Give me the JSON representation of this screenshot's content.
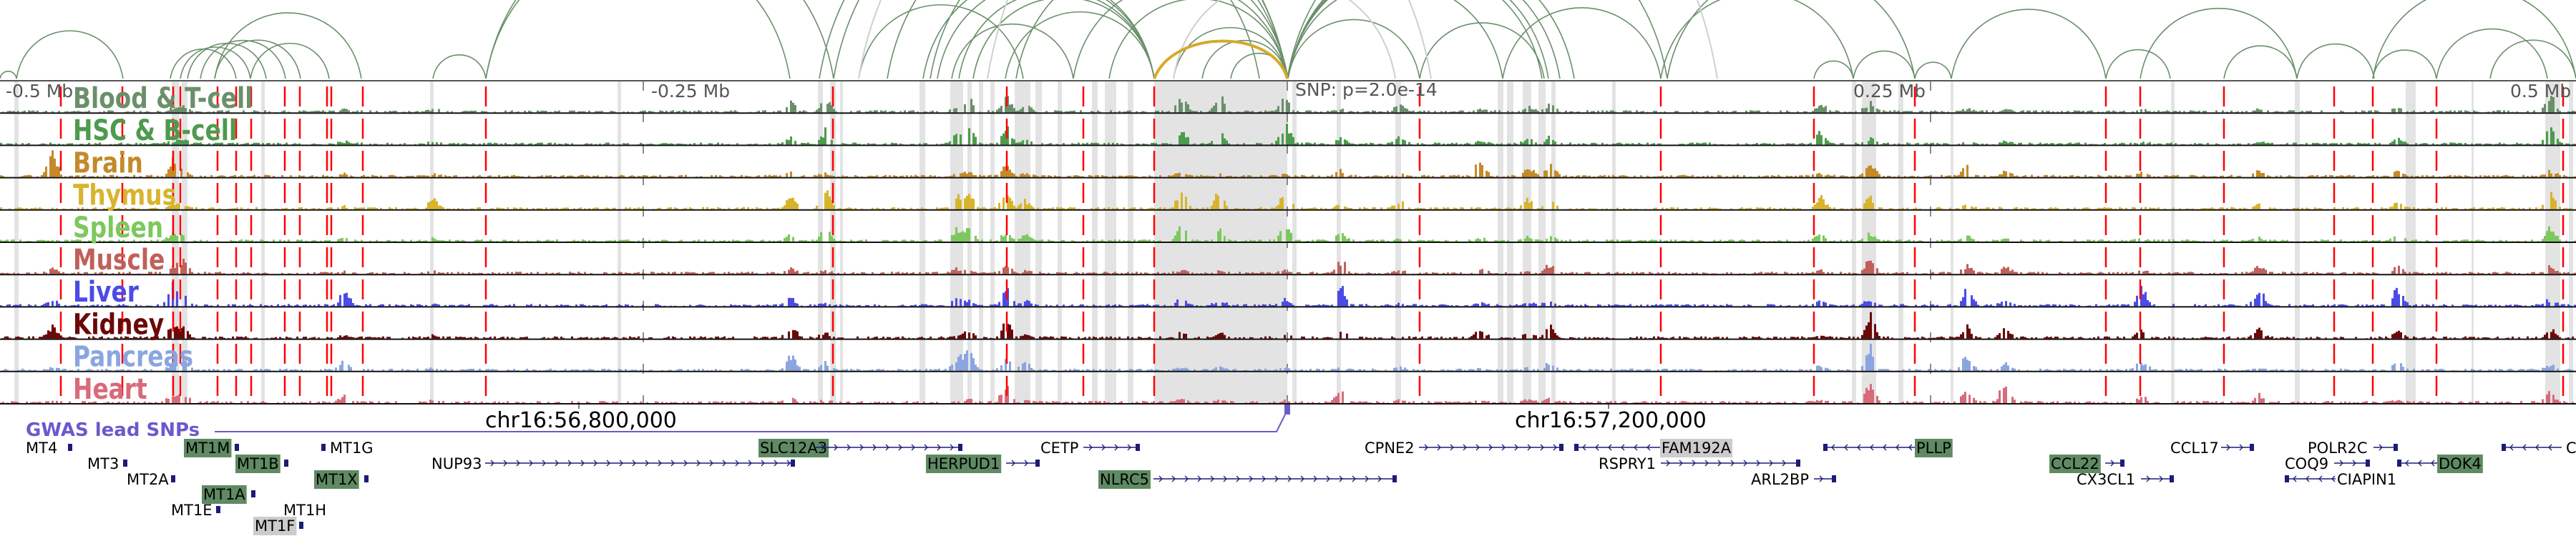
{
  "axis": {
    "left_label": "-0.5 Mb",
    "mid_left_label": "-0.25 Mb",
    "snp_label": "SNP: p=2.0e-14",
    "mid_right_label": "0.25 Mb",
    "right_label": "0.5 Mb"
  },
  "coords": {
    "left": "chr16:56,800,000",
    "right": "chr16:57,200,000"
  },
  "gwas_label": "GWAS lead SNPs",
  "tracks": [
    {
      "name": "Blood & T-cell",
      "color": "#6b8f6b"
    },
    {
      "name": "HSC & B-cell",
      "color": "#4e9a4e"
    },
    {
      "name": "Brain",
      "color": "#c48a2a"
    },
    {
      "name": "Thymus",
      "color": "#d8b42c"
    },
    {
      "name": "Spleen",
      "color": "#7cc85e"
    },
    {
      "name": "Muscle",
      "color": "#c0605a"
    },
    {
      "name": "Liver",
      "color": "#4b4be6"
    },
    {
      "name": "Kidney",
      "color": "#6b0808"
    },
    {
      "name": "Pancreas",
      "color": "#8aa5e0"
    },
    {
      "name": "Heart",
      "color": "#d96a7a"
    }
  ],
  "colors": {
    "ld_snp": "#ff0000",
    "highlight_gene": "#5f8a63",
    "gray_gene": "#cccccc",
    "gene_line": "#1c1c78",
    "arc": "#6b8f6b",
    "arc_top": "#d4aa28"
  },
  "genes": [
    {
      "name": "MT4",
      "highlight": "none"
    },
    {
      "name": "MT1M",
      "highlight": "green"
    },
    {
      "name": "MT1G",
      "highlight": "none"
    },
    {
      "name": "MT3",
      "highlight": "none"
    },
    {
      "name": "MT1B",
      "highlight": "green"
    },
    {
      "name": "NUP93",
      "highlight": "none"
    },
    {
      "name": "SLC12A3",
      "highlight": "green"
    },
    {
      "name": "MT2A",
      "highlight": "none"
    },
    {
      "name": "MT1X",
      "highlight": "green"
    },
    {
      "name": "MT1A",
      "highlight": "green"
    },
    {
      "name": "MT1E",
      "highlight": "none"
    },
    {
      "name": "MT1H",
      "highlight": "none"
    },
    {
      "name": "MT1F",
      "highlight": "gray"
    },
    {
      "name": "HERPUD1",
      "highlight": "green"
    },
    {
      "name": "CETP",
      "highlight": "none"
    },
    {
      "name": "NLRC5",
      "highlight": "green"
    },
    {
      "name": "CPNE2",
      "highlight": "none"
    },
    {
      "name": "FAM192A",
      "highlight": "gray"
    },
    {
      "name": "RSPRY1",
      "highlight": "none"
    },
    {
      "name": "ARL2BP",
      "highlight": "none"
    },
    {
      "name": "PLLP",
      "highlight": "green"
    },
    {
      "name": "CCL22",
      "highlight": "green"
    },
    {
      "name": "CX3CL1",
      "highlight": "none"
    },
    {
      "name": "CCL17",
      "highlight": "none"
    },
    {
      "name": "POLR2C",
      "highlight": "none"
    },
    {
      "name": "COQ9",
      "highlight": "none"
    },
    {
      "name": "CIAPIN1",
      "highlight": "none"
    },
    {
      "name": "DOK4",
      "highlight": "green"
    },
    {
      "name": "C",
      "highlight": "none"
    }
  ]
}
